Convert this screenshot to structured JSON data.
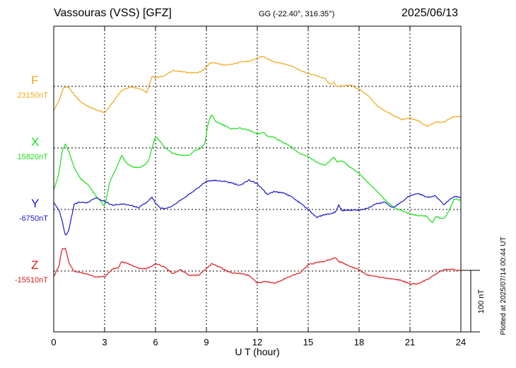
{
  "header": {
    "station": "Vassouras (VSS)  [GFZ]",
    "coords": "GG (-22.40°, 316.35°)",
    "date": "2025/06/13"
  },
  "plotted_note": "Plotted at 2025/07/14 00:44 UT",
  "scale_label": "100 nT",
  "colors": {
    "F": "#f0a818",
    "X": "#18e018",
    "Y": "#1818d0",
    "Z": "#e01818"
  },
  "chart_data": {
    "type": "line",
    "xlabel": "U T (hour)",
    "xlim": [
      0,
      24
    ],
    "xticks": [
      "0",
      "3",
      "6",
      "9",
      "12",
      "15",
      "18",
      "21",
      "24"
    ],
    "y_unit": "nT",
    "scale_bar_nT": 100,
    "series": [
      {
        "name": "F",
        "baseline_label": "23150nT",
        "baseline_nT": 23150,
        "x": [
          0,
          0.3,
          0.6,
          0.9,
          1.2,
          1.6,
          2.0,
          2.5,
          3.0,
          3.5,
          4.0,
          4.5,
          5.0,
          5.5,
          5.6,
          5.8,
          6.0,
          6.5,
          7.0,
          7.5,
          8.0,
          8.5,
          8.9,
          9.2,
          9.5,
          10.0,
          10.5,
          11.0,
          11.5,
          12.0,
          12.3,
          12.6,
          13.0,
          13.5,
          14.0,
          14.5,
          15.0,
          15.5,
          16.0,
          16.3,
          16.5,
          16.7,
          17.0,
          17.5,
          18.0,
          18.5,
          19.0,
          19.5,
          20.0,
          20.5,
          21.0,
          21.5,
          22.0,
          22.5,
          23.0,
          23.5,
          24.0
        ],
        "y": [
          23111,
          23126,
          23149,
          23148,
          23137,
          23124,
          23118,
          23112,
          23107,
          23125,
          23143,
          23149,
          23147,
          23140,
          23150,
          23167,
          23164,
          23167,
          23175,
          23174,
          23172,
          23172,
          23178,
          23188,
          23188,
          23185,
          23186,
          23189,
          23191,
          23196,
          23199,
          23195,
          23189,
          23187,
          23183,
          23176,
          23171,
          23167,
          23163,
          23152,
          23158,
          23149,
          23151,
          23152,
          23145,
          23136,
          23120,
          23111,
          23103,
          23096,
          23099,
          23094,
          23085,
          23092,
          23092,
          23100,
          23101
        ]
      },
      {
        "name": "X",
        "baseline_label": "15820nT",
        "baseline_nT": 15820,
        "x": [
          0,
          0.3,
          0.5,
          0.7,
          0.9,
          1.2,
          1.6,
          2.0,
          2.5,
          3.0,
          3.3,
          3.6,
          4.0,
          4.3,
          4.7,
          5.0,
          5.3,
          5.6,
          5.8,
          6.0,
          6.3,
          6.6,
          7.0,
          7.5,
          8.0,
          8.3,
          8.6,
          8.9,
          9.1,
          9.3,
          9.6,
          10.0,
          10.5,
          11.0,
          11.5,
          12.0,
          12.4,
          12.6,
          13.0,
          13.5,
          14.0,
          14.5,
          15.0,
          15.5,
          16.0,
          16.3,
          16.5,
          16.7,
          17.0,
          17.5,
          18.0,
          18.5,
          19.0,
          19.5,
          20.0,
          20.5,
          21.0,
          21.5,
          22.0,
          22.3,
          22.5,
          23.0,
          23.3,
          23.6,
          24.0
        ],
        "y": [
          15751,
          15778,
          15816,
          15827,
          15814,
          15788,
          15769,
          15761,
          15742,
          15725,
          15765,
          15782,
          15808,
          15795,
          15789,
          15788,
          15791,
          15800,
          15820,
          15838,
          15830,
          15819,
          15811,
          15808,
          15808,
          15816,
          15818,
          15826,
          15860,
          15874,
          15862,
          15857,
          15851,
          15852,
          15849,
          15843,
          15845,
          15839,
          15837,
          15829,
          15822,
          15811,
          15806,
          15797,
          15792,
          15799,
          15806,
          15797,
          15799,
          15788,
          15779,
          15764,
          15752,
          15736,
          15724,
          15718,
          15713,
          15710,
          15709,
          15698,
          15708,
          15705,
          15718,
          15737,
          15735
        ]
      },
      {
        "name": "Y",
        "baseline_label": "-6750nT",
        "baseline_nT": -6750,
        "x": [
          0,
          0.3,
          0.5,
          0.7,
          0.9,
          1.2,
          1.5,
          2.0,
          2.5,
          3.0,
          3.5,
          4.0,
          4.5,
          5.0,
          5.5,
          5.8,
          6.0,
          6.3,
          6.6,
          7.0,
          7.5,
          8.0,
          8.5,
          9.0,
          9.5,
          10.0,
          10.5,
          11.0,
          11.5,
          12.0,
          12.3,
          12.6,
          13.0,
          13.5,
          14.0,
          14.5,
          15.0,
          15.5,
          16.0,
          16.3,
          16.6,
          16.8,
          17.0,
          17.5,
          18.0,
          18.5,
          19.0,
          19.5,
          20.0,
          20.5,
          21.0,
          21.5,
          22.0,
          22.5,
          23.0,
          23.3,
          23.6,
          24.0
        ],
        "y": [
          -6739,
          -6750,
          -6769,
          -6794,
          -6783,
          -6742,
          -6738,
          -6739,
          -6731,
          -6737,
          -6743,
          -6741,
          -6743,
          -6747,
          -6738,
          -6730,
          -6740,
          -6748,
          -6748,
          -6744,
          -6734,
          -6725,
          -6715,
          -6704,
          -6703,
          -6704,
          -6707,
          -6711,
          -6702,
          -6708,
          -6717,
          -6726,
          -6721,
          -6723,
          -6729,
          -6739,
          -6750,
          -6763,
          -6758,
          -6757,
          -6754,
          -6743,
          -6752,
          -6751,
          -6751,
          -6748,
          -6741,
          -6738,
          -6747,
          -6738,
          -6727,
          -6724,
          -6730,
          -6728,
          -6742,
          -6735,
          -6729,
          -6730
        ]
      },
      {
        "name": "Z",
        "baseline_label": "-15510nT",
        "baseline_nT": -15510,
        "x": [
          0,
          0.3,
          0.5,
          0.7,
          0.9,
          1.2,
          1.5,
          2.0,
          2.5,
          3.0,
          3.5,
          3.8,
          4.0,
          4.5,
          5.0,
          5.5,
          6.0,
          6.5,
          7.0,
          7.5,
          8.0,
          8.5,
          9.0,
          9.3,
          9.6,
          10.0,
          10.5,
          11.0,
          11.5,
          12.0,
          12.5,
          13.0,
          13.5,
          14.0,
          14.5,
          15.0,
          15.5,
          16.0,
          16.3,
          16.6,
          16.8,
          17.0,
          17.5,
          18.0,
          18.5,
          19.0,
          19.5,
          20.0,
          20.5,
          21.0,
          21.5,
          22.0,
          22.5,
          23.0,
          23.5,
          24.0
        ],
        "y": [
          -15519,
          -15503,
          -15473,
          -15474,
          -15497,
          -15510,
          -15512,
          -15515,
          -15520,
          -15519,
          -15506,
          -15505,
          -15495,
          -15499,
          -15506,
          -15506,
          -15498,
          -15503,
          -15514,
          -15508,
          -15517,
          -15517,
          -15506,
          -15498,
          -15501,
          -15507,
          -15513,
          -15514,
          -15517,
          -15529,
          -15527,
          -15530,
          -15524,
          -15518,
          -15513,
          -15500,
          -15496,
          -15494,
          -15491,
          -15488,
          -15495,
          -15496,
          -15503,
          -15508,
          -15517,
          -15519,
          -15521,
          -15523,
          -15525,
          -15531,
          -15530,
          -15524,
          -15515,
          -15508,
          -15507,
          -15510
        ]
      }
    ]
  }
}
